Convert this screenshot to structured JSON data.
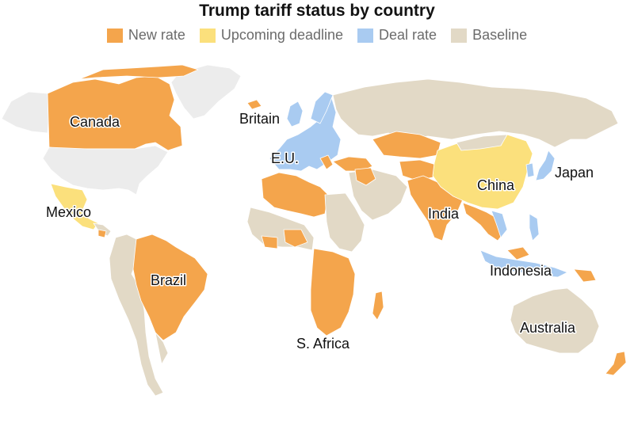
{
  "title": "Trump tariff status by country",
  "legend": [
    {
      "label": "New rate",
      "color": "#f4a54c"
    },
    {
      "label": "Upcoming deadline",
      "color": "#fbe07c"
    },
    {
      "label": "Deal rate",
      "color": "#a9cbf1"
    },
    {
      "label": "Baseline",
      "color": "#e2d9c6"
    }
  ],
  "colors": {
    "no_data": "#ececec",
    "border": "#ffffff"
  },
  "labels": {
    "canada": "Canada",
    "mexico": "Mexico",
    "brazil": "Brazil",
    "britain": "Britain",
    "eu": "E.U.",
    "china": "China",
    "japan": "Japan",
    "india": "India",
    "indonesia": "Indonesia",
    "south_africa": "S. Africa",
    "australia": "Australia"
  }
}
